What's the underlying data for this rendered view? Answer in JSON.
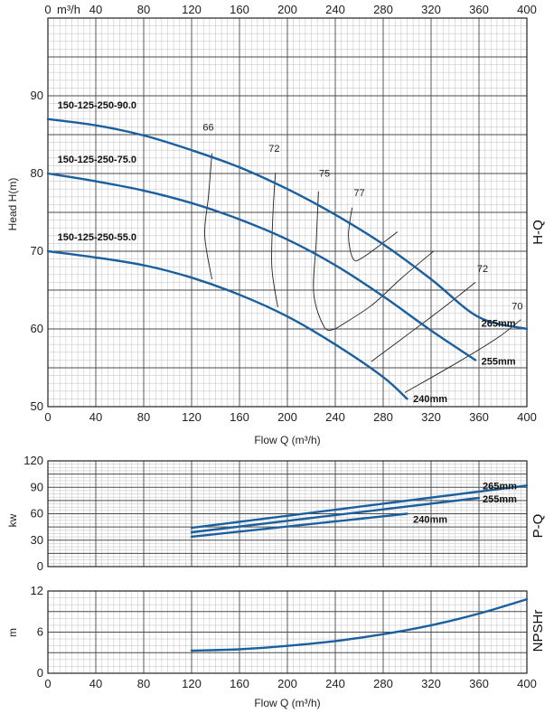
{
  "chart_data": [
    {
      "type": "line",
      "title": "",
      "top_axis_unit": "m³/h",
      "xlabel": "Flow Q (m³/h)",
      "ylabel": "Head H(m)",
      "side_label": "H-Q",
      "xlim": [
        0,
        400
      ],
      "ylim": [
        50,
        100
      ],
      "xticks": [
        0,
        40,
        80,
        120,
        160,
        200,
        240,
        280,
        320,
        360,
        400
      ],
      "yticks": [
        50,
        60,
        70,
        80,
        90
      ],
      "grid": true,
      "series": [
        {
          "name": "265mm",
          "color": "#1a5f9e",
          "x": [
            0,
            40,
            80,
            120,
            160,
            200,
            240,
            280,
            320,
            360,
            400
          ],
          "y": [
            87.0,
            86.2,
            84.9,
            83.0,
            80.8,
            78.0,
            74.7,
            70.9,
            66.4,
            61.5,
            60.0
          ]
        },
        {
          "name": "255mm",
          "color": "#1a5f9e",
          "x": [
            0,
            40,
            80,
            120,
            160,
            200,
            240,
            280,
            320,
            357
          ],
          "y": [
            80.0,
            79.0,
            77.8,
            76.2,
            74.1,
            71.5,
            68.2,
            64.2,
            59.8,
            56.0
          ]
        },
        {
          "name": "240mm",
          "color": "#1a5f9e",
          "x": [
            0,
            40,
            80,
            120,
            160,
            200,
            240,
            280,
            300
          ],
          "y": [
            70.0,
            69.2,
            68.2,
            66.6,
            64.4,
            61.6,
            58.0,
            53.8,
            51.0
          ]
        }
      ],
      "curve_labels": [
        {
          "text": "150-125-250-90.0",
          "x": 8,
          "y": 88.4
        },
        {
          "text": "150-125-250-75.0",
          "x": 8,
          "y": 81.4
        },
        {
          "text": "150-125-250-55.0",
          "x": 8,
          "y": 71.4
        }
      ],
      "diameter_labels": [
        {
          "text": "265mm",
          "x": 362,
          "y": 60.3
        },
        {
          "text": "255mm",
          "x": 362,
          "y": 55.4
        },
        {
          "text": "240mm",
          "x": 305,
          "y": 50.6
        }
      ],
      "efficiency": [
        {
          "label": "66",
          "label_x": 134,
          "label_y": 85.5,
          "points": [
            [
              137,
              82.6
            ],
            [
              134,
              77
            ],
            [
              131,
              72
            ],
            [
              137,
              66.4
            ]
          ]
        },
        {
          "label": "72",
          "label_x": 189,
          "label_y": 82.8,
          "points": [
            [
              190,
              80.1
            ],
            [
              188,
              75
            ],
            [
              187,
              68
            ],
            [
              192,
              62.8
            ]
          ]
        },
        {
          "label": "75",
          "label_x": 231,
          "label_y": 79.6,
          "points": [
            [
              226,
              77.7
            ],
            [
              224,
              71
            ],
            [
              222,
              64.5
            ],
            [
              231,
              60.2
            ],
            [
              240,
              60
            ]
          ]
        },
        {
          "label": "77",
          "label_x": 260,
          "label_y": 77.1,
          "points": [
            [
              254,
              75.6
            ],
            [
              251,
              72
            ],
            [
              255,
              69
            ],
            [
              264,
              69.3
            ],
            [
              292,
              72.5
            ]
          ]
        },
        {
          "label": "72",
          "label_x": 363,
          "label_y": 67.3,
          "points": [
            [
              240,
              60
            ],
            [
              270,
              63
            ],
            [
              295,
              66.5
            ],
            [
              322,
              70
            ]
          ]
        },
        {
          "label": "72",
          "label_x": 363,
          "label_y": 67.3,
          "points": [
            [
              270,
              55.8
            ],
            [
              305,
              59.8
            ],
            [
              335,
              63.3
            ],
            [
              357,
              66
            ]
          ]
        },
        {
          "label": "70",
          "label_x": 392,
          "label_y": 62.5,
          "points": [
            [
              298,
              51.8
            ],
            [
              340,
              55.5
            ],
            [
              375,
              58.8
            ],
            [
              395,
              61.2
            ]
          ]
        }
      ]
    },
    {
      "type": "line",
      "title": "",
      "xlabel": "",
      "ylabel": "kw",
      "side_label": "P-Q",
      "xlim": [
        0,
        400
      ],
      "ylim": [
        0,
        120
      ],
      "xticks": [
        0,
        40,
        80,
        120,
        160,
        200,
        240,
        280,
        320,
        360,
        400
      ],
      "yticks": [
        0,
        30,
        60,
        90,
        120
      ],
      "grid": true,
      "series": [
        {
          "name": "265mm",
          "color": "#1a5f9e",
          "x": [
            120,
            400
          ],
          "y": [
            44,
            92
          ]
        },
        {
          "name": "255mm",
          "color": "#1a5f9e",
          "x": [
            120,
            360
          ],
          "y": [
            39,
            78
          ]
        },
        {
          "name": "240mm",
          "color": "#1a5f9e",
          "x": [
            120,
            300
          ],
          "y": [
            34,
            60
          ]
        }
      ],
      "labels": [
        {
          "text": "265mm",
          "x": 363,
          "y": 92
        },
        {
          "text": "255mm",
          "x": 363,
          "y": 77
        },
        {
          "text": "240mm",
          "x": 305,
          "y": 54
        }
      ]
    },
    {
      "type": "line",
      "title": "",
      "xlabel": "Flow Q (m³/h)",
      "ylabel": "m",
      "side_label": "NPSHr",
      "xlim": [
        0,
        400
      ],
      "ylim": [
        0,
        12
      ],
      "xticks": [
        0,
        40,
        80,
        120,
        160,
        200,
        240,
        280,
        320,
        360,
        400
      ],
      "yticks": [
        0,
        6,
        12
      ],
      "grid": true,
      "series": [
        {
          "name": "",
          "color": "#1a5f9e",
          "x": [
            120,
            160,
            200,
            240,
            280,
            320,
            360,
            400
          ],
          "y": [
            3.3,
            3.5,
            4.0,
            4.7,
            5.7,
            7.0,
            8.7,
            10.8
          ]
        }
      ]
    }
  ]
}
